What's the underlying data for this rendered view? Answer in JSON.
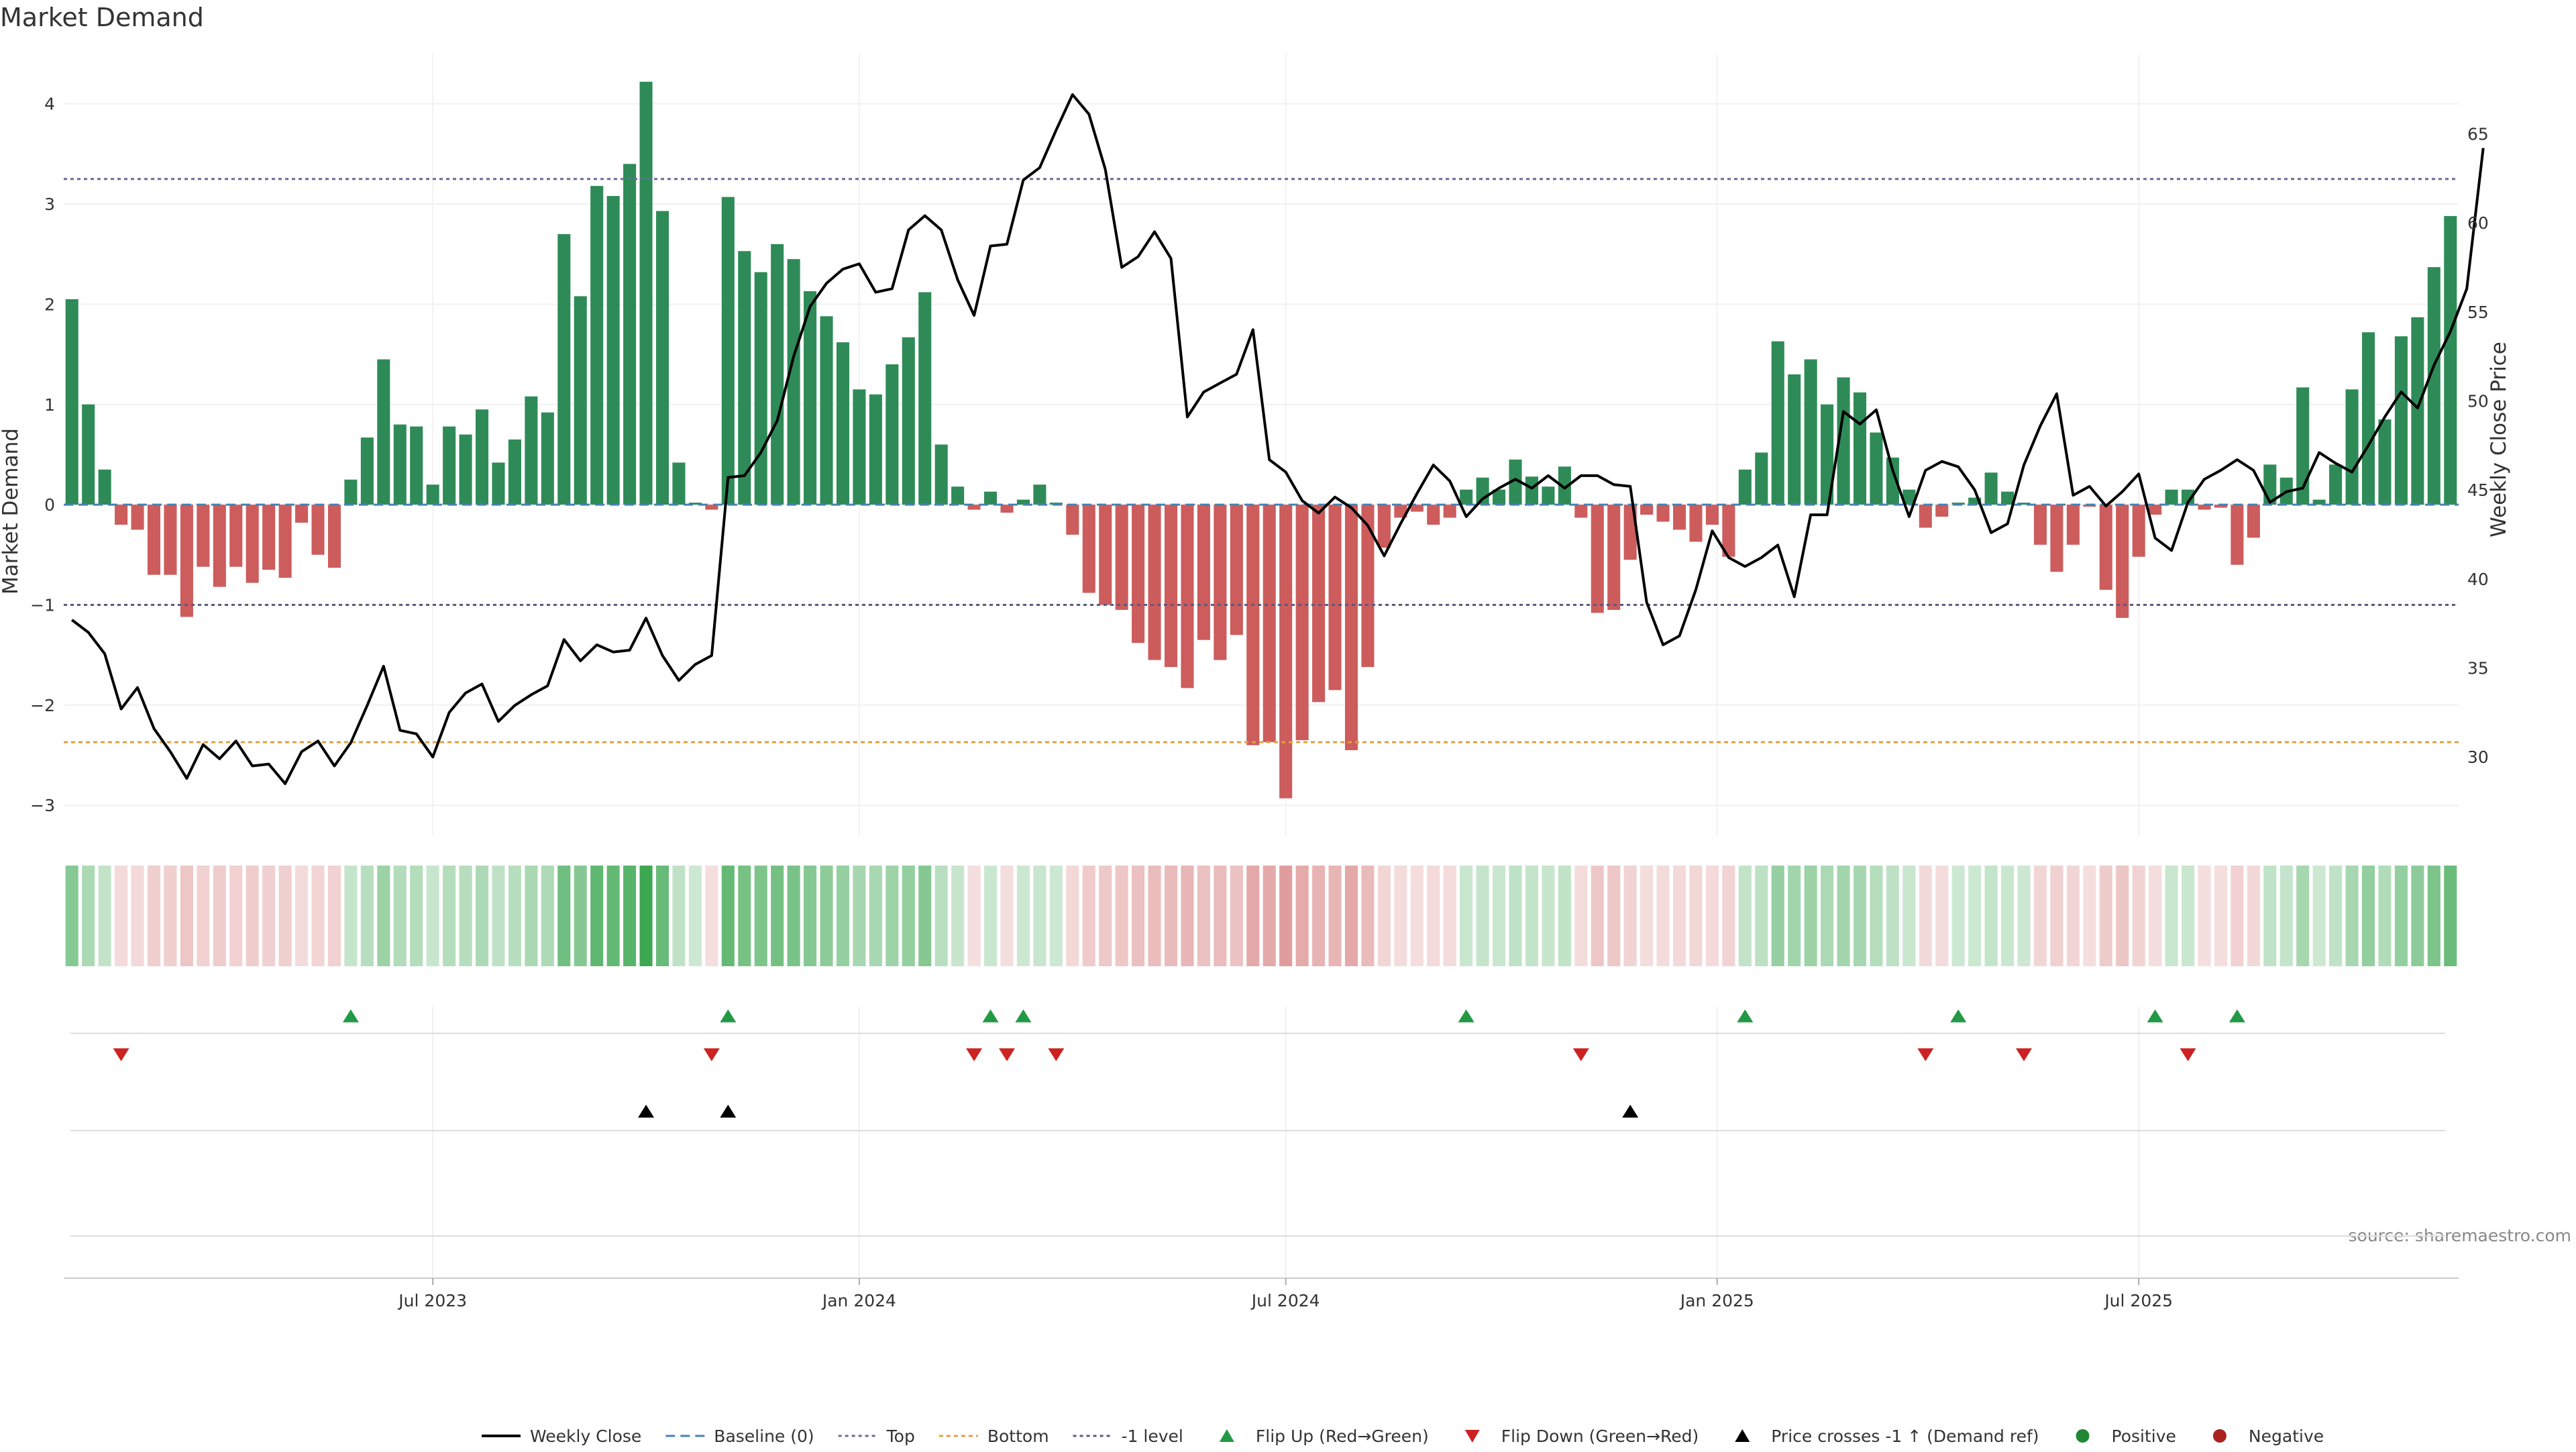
{
  "chart_data": {
    "type": "bar",
    "title": "Market Demand",
    "ylabel": "Market Demand",
    "y2label": "Weekly Close Price",
    "ylim": [
      -3.3,
      4.5
    ],
    "y2lim": [
      25.6,
      69.5
    ],
    "yticks": [
      -3,
      -2,
      -1,
      0,
      1,
      2,
      3,
      4
    ],
    "yticklabels": [
      "−3",
      "−2",
      "−1",
      "0",
      "1",
      "2",
      "3",
      "4"
    ],
    "y2ticks": [
      30,
      35,
      40,
      45,
      50,
      55,
      60,
      65
    ],
    "reference_lines": {
      "baseline": 0,
      "top": 3.25,
      "bottom": -2.37,
      "minus_one": -1
    },
    "x_ticks": [
      {
        "label": "Jul 2023",
        "week": 22
      },
      {
        "label": "Jan 2024",
        "week": 48
      },
      {
        "label": "Jul 2024",
        "week": 74
      },
      {
        "label": "Jan 2025",
        "week": 100.3
      },
      {
        "label": "Jul 2025",
        "week": 126
      }
    ],
    "demand": [
      2.05,
      1.0,
      0.35,
      -0.2,
      -0.25,
      -0.7,
      -0.7,
      -1.12,
      -0.62,
      -0.82,
      -0.62,
      -0.78,
      -0.65,
      -0.73,
      -0.18,
      -0.5,
      -0.63,
      0.25,
      0.67,
      1.45,
      0.8,
      0.78,
      0.2,
      0.78,
      0.7,
      0.95,
      0.42,
      0.65,
      1.08,
      0.92,
      2.7,
      2.08,
      3.18,
      3.08,
      3.4,
      4.22,
      2.93,
      0.42,
      0.02,
      -0.05,
      3.07,
      2.53,
      2.32,
      2.6,
      2.45,
      2.13,
      1.88,
      1.62,
      1.15,
      1.1,
      1.4,
      1.67,
      2.12,
      0.6,
      0.18,
      -0.05,
      0.13,
      -0.08,
      0.05,
      0.2,
      0.02,
      -0.3,
      -0.88,
      -1.0,
      -1.05,
      -1.38,
      -1.55,
      -1.62,
      -1.83,
      -1.35,
      -1.55,
      -1.3,
      -2.4,
      -2.37,
      -2.93,
      -2.35,
      -1.97,
      -1.85,
      -2.45,
      -1.62,
      -0.43,
      -0.13,
      -0.07,
      -0.2,
      -0.13,
      0.15,
      0.27,
      0.15,
      0.45,
      0.28,
      0.18,
      0.38,
      -0.13,
      -1.08,
      -1.05,
      -0.55,
      -0.1,
      -0.17,
      -0.25,
      -0.37,
      -0.2,
      -0.52,
      0.35,
      0.52,
      1.63,
      1.3,
      1.45,
      1.0,
      1.27,
      1.12,
      0.72,
      0.47,
      0.15,
      -0.23,
      -0.12,
      0.02,
      0.07,
      0.32,
      0.13,
      0.02,
      -0.4,
      -0.67,
      -0.4,
      -0.02,
      -0.85,
      -1.13,
      -0.52,
      -0.1,
      0.15,
      0.15,
      -0.05,
      -0.03,
      -0.6,
      -0.33,
      0.4,
      0.27,
      1.17,
      0.05,
      0.4,
      1.15,
      1.72,
      0.85,
      1.68,
      1.87,
      2.37,
      2.88
    ],
    "price": [
      37.7,
      37.0,
      35.8,
      32.7,
      33.9,
      31.6,
      30.3,
      28.8,
      30.7,
      29.9,
      30.9,
      29.5,
      29.6,
      28.5,
      30.3,
      30.9,
      29.5,
      30.8,
      32.9,
      35.1,
      31.5,
      31.3,
      30.0,
      32.5,
      33.6,
      34.1,
      32.0,
      32.9,
      33.5,
      34.0,
      36.6,
      35.4,
      36.3,
      35.9,
      36.0,
      37.8,
      35.7,
      34.3,
      35.2,
      35.7,
      45.7,
      45.8,
      47.1,
      48.9,
      52.5,
      55.3,
      56.6,
      57.4,
      57.7,
      56.1,
      56.3,
      59.6,
      60.4,
      59.6,
      56.8,
      54.8,
      58.7,
      58.8,
      62.4,
      63.1,
      65.2,
      67.2,
      66.1,
      63.0,
      57.5,
      58.1,
      59.5,
      58.0,
      49.1,
      50.5,
      51.0,
      51.5,
      54.0,
      46.7,
      46.0,
      44.4,
      43.7,
      44.6,
      44.0,
      43.0,
      41.3,
      43.1,
      44.8,
      46.4,
      45.5,
      43.5,
      44.5,
      45.1,
      45.6,
      45.1,
      45.8,
      45.1,
      45.8,
      45.8,
      45.3,
      45.2,
      38.7,
      36.3,
      36.8,
      39.4,
      42.7,
      41.2,
      40.7,
      41.2,
      41.9,
      39.0,
      43.6,
      43.6,
      49.4,
      48.7,
      49.5,
      46.1,
      43.5,
      46.1,
      46.6,
      46.3,
      45.0,
      42.6,
      43.1,
      46.4,
      48.6,
      50.4,
      44.7,
      45.2,
      44.1,
      44.9,
      45.9,
      42.3,
      41.6,
      44.3,
      45.6,
      46.1,
      46.7,
      46.1,
      44.3,
      44.9,
      45.1,
      47.1,
      46.5,
      46.0,
      47.5,
      49.1,
      50.5,
      49.6,
      52.0,
      53.9,
      56.3,
      64.2
    ],
    "flip_up_weeks": [
      17,
      40,
      56,
      58,
      85,
      102,
      115,
      127,
      132
    ],
    "flip_down_weeks": [
      3,
      39,
      55,
      57,
      60,
      92,
      113,
      119,
      129
    ],
    "price_cross_weeks": [
      35,
      40,
      95
    ],
    "colors": {
      "positive_bar": "#2e8b57",
      "negative_bar": "#cd5c5c",
      "price_line": "#000000",
      "baseline": "#4682b4",
      "top_line": "#6a6a9a",
      "bottom_line": "#e0a040",
      "minus_one_line": "#5a5a80",
      "flip_up": "#229944",
      "flip_down": "#cc2222",
      "cross": "#000000",
      "positive_dot": "#228833",
      "negative_dot": "#aa2222"
    },
    "legend": [
      {
        "label": "Weekly Close",
        "kind": "line"
      },
      {
        "label": "Baseline (0)",
        "kind": "dash"
      },
      {
        "label": "Top",
        "kind": "dot-top"
      },
      {
        "label": "Bottom",
        "kind": "dot-bottom"
      },
      {
        "label": "-1 level",
        "kind": "dot-minus"
      },
      {
        "label": "Flip Up (Red→Green)",
        "kind": "tri-up-green"
      },
      {
        "label": "Flip Down (Green→Red)",
        "kind": "tri-down-red"
      },
      {
        "label": "Price crosses -1 ↑ (Demand ref)",
        "kind": "tri-up-black"
      },
      {
        "label": "Positive",
        "kind": "dot-green"
      },
      {
        "label": "Negative",
        "kind": "dot-red"
      }
    ],
    "legend_placement": "bottom-center",
    "source": "source: sharemaestro.com"
  }
}
